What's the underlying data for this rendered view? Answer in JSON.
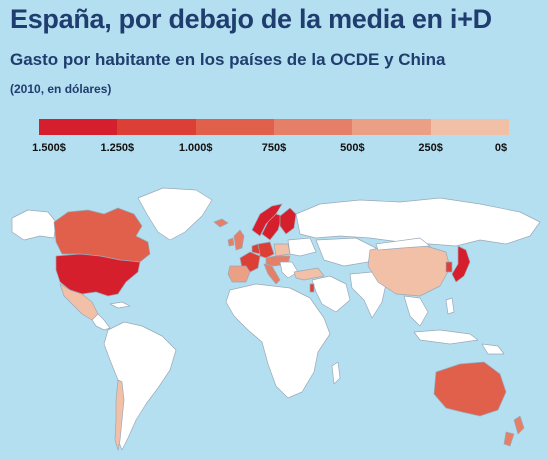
{
  "title": "España, por debajo de la media en i+D",
  "subtitle": "Gasto por habitante en los países de la OCDE y China",
  "note": "(2010, en dólares)",
  "legend": {
    "colors": [
      "#d61f2c",
      "#dc3f35",
      "#e0604b",
      "#e57f68",
      "#eb9f85",
      "#f2bfa7"
    ],
    "labels": [
      "1.500$",
      "1.250$",
      "1.000$",
      "750$",
      "500$",
      "250$",
      "0$"
    ]
  },
  "map_colors": {
    "ocean": "#b4dff0",
    "no_data": "#ffffff",
    "border": "#9aa9b8",
    "usa": "#d61f2c",
    "canada": "#e0604b",
    "mexico": "#f2bfa7",
    "nordics": "#d61f2c",
    "europe_high": "#dc3f35",
    "europe_mid": "#e57f68",
    "spain": "#eb9f85",
    "turkey": "#f2bfa7",
    "israel": "#dc3f35",
    "china": "#f2bfa7",
    "japan": "#d61f2c",
    "korea": "#dc3f35",
    "australia": "#e0604b",
    "new_zealand": "#e57f68",
    "chile": "#f2bfa7"
  }
}
